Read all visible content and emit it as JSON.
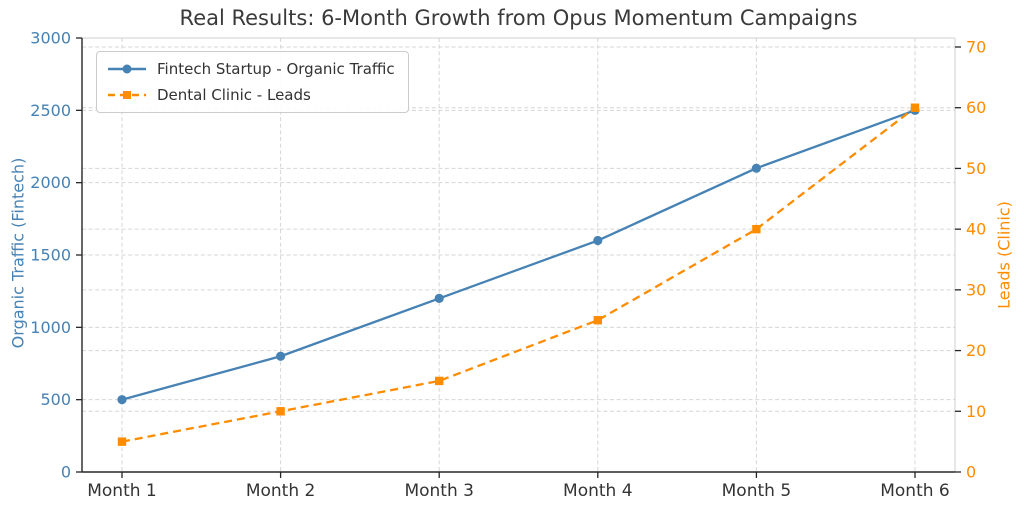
{
  "chart_data": {
    "type": "line",
    "title": "Real Results: 6-Month Growth from Opus Momentum Campaigns",
    "categories": [
      "Month 1",
      "Month 2",
      "Month 3",
      "Month 4",
      "Month 5",
      "Month 6"
    ],
    "series": [
      {
        "name": "Fintech Startup - Organic Traffic",
        "axis": "left",
        "color": "#4682B4",
        "line_style": "solid",
        "marker": "circle",
        "values": [
          500,
          800,
          1200,
          1600,
          2100,
          2500
        ]
      },
      {
        "name": "Dental Clinic - Leads",
        "axis": "right",
        "color": "#FF8C00",
        "line_style": "dashed",
        "marker": "square",
        "values": [
          5,
          10,
          15,
          25,
          40,
          60
        ]
      }
    ],
    "left_axis": {
      "label": "Organic Traffic (Fintech)",
      "color": "#4682B4",
      "range": [
        0,
        3000
      ],
      "ticks": [
        0,
        500,
        1000,
        1500,
        2000,
        2500,
        3000
      ]
    },
    "right_axis": {
      "label": "Leads (Clinic)",
      "color": "#FF8C00",
      "range": [
        0,
        70
      ],
      "ticks": [
        0,
        10,
        20,
        30,
        40,
        50,
        60,
        70
      ]
    },
    "x_axis": {
      "tick_label_color": "#333333"
    },
    "legend_position": "upper left",
    "grid": true
  }
}
